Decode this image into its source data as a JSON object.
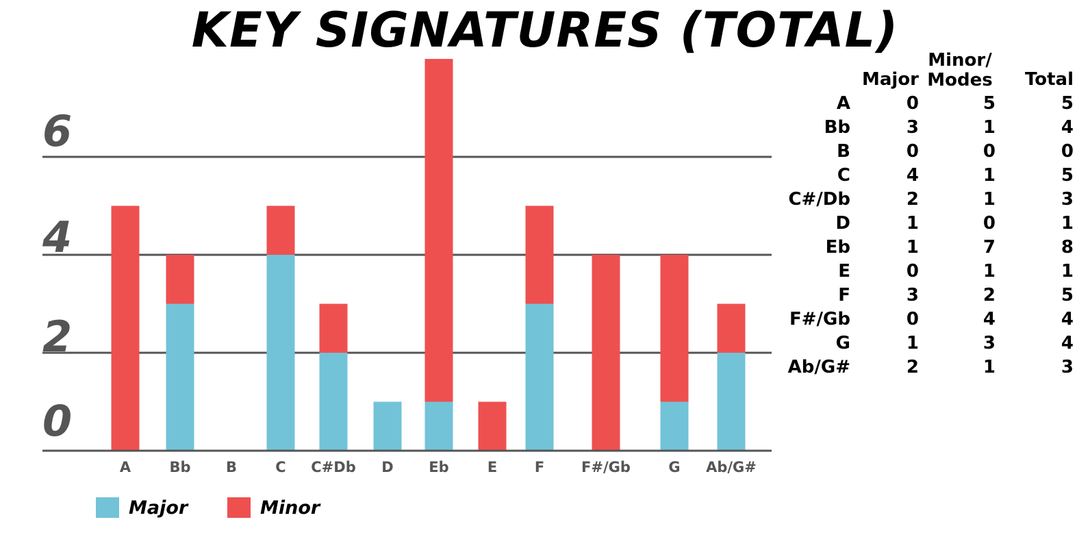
{
  "chart_data": {
    "type": "bar",
    "stacked": true,
    "title": "KEY SIGNATURES (TOTAL)",
    "categories": [
      "A",
      "Bb",
      "B",
      "C",
      "C#Db",
      "D",
      "Eb",
      "E",
      "F",
      "F#/Gb",
      "G",
      "Ab/G#"
    ],
    "series": [
      {
        "name": "Major",
        "color": "#72c3d8",
        "values": [
          0,
          3,
          0,
          4,
          2,
          1,
          1,
          0,
          3,
          0,
          1,
          2
        ]
      },
      {
        "name": "Minor",
        "color": "#ee5050",
        "values": [
          5,
          1,
          0,
          1,
          1,
          0,
          7,
          1,
          2,
          4,
          3,
          1
        ]
      }
    ],
    "y_ticks": [
      "0",
      "2",
      "4",
      "6"
    ],
    "ylim": [
      0,
      8
    ],
    "grid": true,
    "legend_position": "bottom-left"
  },
  "table": {
    "headers": {
      "major": "Major",
      "minor_line1": "Minor/",
      "minor_line2": "Modes",
      "total": "Total"
    },
    "rows": [
      {
        "key": "A",
        "major": "0",
        "minor": "5",
        "total": "5"
      },
      {
        "key": "Bb",
        "major": "3",
        "minor": "1",
        "total": "4"
      },
      {
        "key": "B",
        "major": "0",
        "minor": "0",
        "total": "0"
      },
      {
        "key": "C",
        "major": "4",
        "minor": "1",
        "total": "5"
      },
      {
        "key": "C#/Db",
        "major": "2",
        "minor": "1",
        "total": "3"
      },
      {
        "key": "D",
        "major": "1",
        "minor": "0",
        "total": "1"
      },
      {
        "key": "Eb",
        "major": "1",
        "minor": "7",
        "total": "8"
      },
      {
        "key": "E",
        "major": "0",
        "minor": "1",
        "total": "1"
      },
      {
        "key": "F",
        "major": "3",
        "minor": "2",
        "total": "5"
      },
      {
        "key": "F#/Gb",
        "major": "0",
        "minor": "4",
        "total": "4"
      },
      {
        "key": "G",
        "major": "1",
        "minor": "3",
        "total": "4"
      },
      {
        "key": "Ab/G#",
        "major": "2",
        "minor": "1",
        "total": "3"
      }
    ]
  }
}
